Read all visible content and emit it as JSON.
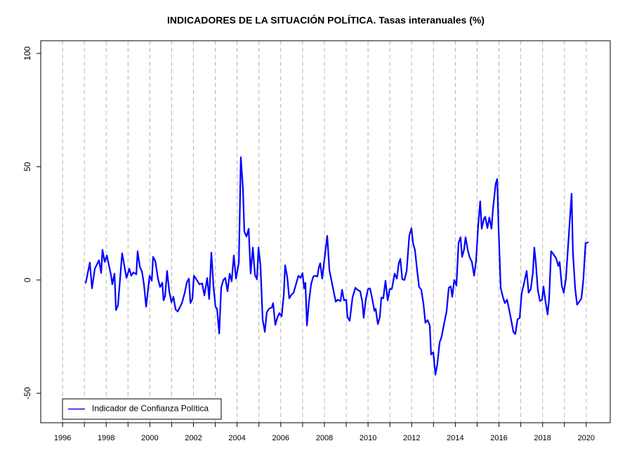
{
  "chart_data": {
    "type": "line",
    "title": "INDICADORES DE LA SITUACIÓN POLÍTICA. Tasas interanuales (%)",
    "x": [
      1997.06,
      1997.25,
      1997.35,
      1997.48,
      1997.67,
      1997.77,
      1997.83,
      1997.93,
      1998.03,
      1998.22,
      1998.28,
      1998.38,
      1998.45,
      1998.54,
      1998.73,
      1998.93,
      1999.06,
      1999.15,
      1999.25,
      1999.38,
      1999.44,
      1999.54,
      1999.64,
      1999.73,
      1999.83,
      1999.99,
      2000.09,
      2000.15,
      2000.25,
      2000.38,
      2000.47,
      2000.57,
      2000.63,
      2000.7,
      2000.79,
      2000.89,
      2000.99,
      2001.08,
      2001.18,
      2001.28,
      2001.47,
      2001.6,
      2001.7,
      2001.79,
      2001.86,
      2001.95,
      2002.02,
      2002.15,
      2002.27,
      2002.4,
      2002.5,
      2002.63,
      2002.72,
      2002.82,
      2002.92,
      2003.01,
      2003.08,
      2003.18,
      2003.27,
      2003.37,
      2003.46,
      2003.56,
      2003.66,
      2003.75,
      2003.85,
      2003.95,
      2004.08,
      2004.17,
      2004.27,
      2004.33,
      2004.43,
      2004.53,
      2004.62,
      2004.72,
      2004.82,
      2004.91,
      2004.98,
      2005.07,
      2005.17,
      2005.27,
      2005.36,
      2005.46,
      2005.59,
      2005.65,
      2005.75,
      2005.85,
      2005.94,
      2006.04,
      2006.14,
      2006.2,
      2006.3,
      2006.39,
      2006.49,
      2006.59,
      2006.68,
      2006.81,
      2006.91,
      2007.0,
      2007.07,
      2007.13,
      2007.2,
      2007.29,
      2007.39,
      2007.49,
      2007.58,
      2007.68,
      2007.74,
      2007.81,
      2007.9,
      2008.0,
      2008.13,
      2008.23,
      2008.36,
      2008.52,
      2008.61,
      2008.74,
      2008.81,
      2008.9,
      2009.0,
      2009.06,
      2009.16,
      2009.29,
      2009.42,
      2009.51,
      2009.64,
      2009.74,
      2009.8,
      2009.9,
      2010.0,
      2010.09,
      2010.19,
      2010.29,
      2010.35,
      2010.45,
      2010.54,
      2010.61,
      2010.7,
      2010.8,
      2010.9,
      2010.99,
      2011.09,
      2011.22,
      2011.32,
      2011.41,
      2011.48,
      2011.57,
      2011.67,
      2011.77,
      2011.89,
      2011.99,
      2012.06,
      2012.15,
      2012.25,
      2012.34,
      2012.44,
      2012.54,
      2012.63,
      2012.73,
      2012.83,
      2012.89,
      2012.99,
      2013.09,
      2013.18,
      2013.28,
      2013.37,
      2013.5,
      2013.6,
      2013.7,
      2013.79,
      2013.86,
      2013.95,
      2014.05,
      2014.15,
      2014.24,
      2014.31,
      2014.4,
      2014.47,
      2014.57,
      2014.66,
      2014.76,
      2014.86,
      2014.95,
      2015.05,
      2015.14,
      2015.21,
      2015.31,
      2015.37,
      2015.47,
      2015.56,
      2015.66,
      2015.72,
      2015.85,
      2015.92,
      2015.98,
      2016.08,
      2016.17,
      2016.27,
      2016.37,
      2016.46,
      2016.56,
      2016.66,
      2016.75,
      2016.85,
      2016.95,
      2017.04,
      2017.14,
      2017.27,
      2017.36,
      2017.46,
      2017.56,
      2017.62,
      2017.69,
      2017.78,
      2017.88,
      2017.98,
      2018.04,
      2018.14,
      2018.23,
      2018.3,
      2018.39,
      2018.49,
      2018.62,
      2018.72,
      2018.78,
      2018.88,
      2018.97,
      2019.07,
      2019.2,
      2019.33,
      2019.39,
      2019.49,
      2019.58,
      2019.68,
      2019.78,
      2019.87,
      2019.97,
      2020.04,
      2020.1
    ],
    "series": [
      {
        "name": "Indicador de Confianza Política",
        "color": "#0000ff",
        "values": [
          -1.5,
          7.7,
          -3.7,
          5,
          8.7,
          3.1,
          13.3,
          8,
          10.8,
          2.2,
          -1.9,
          2.8,
          -13.3,
          -11.2,
          11.8,
          0.9,
          5,
          1.9,
          3.4,
          2.5,
          12.7,
          5.9,
          3.7,
          -1.9,
          -11.8,
          1.9,
          -0.3,
          10.2,
          8.4,
          0.3,
          -3.1,
          -1.2,
          -9,
          -7.1,
          4,
          -5,
          -9.9,
          -7.4,
          -13,
          -13.9,
          -10.2,
          -5.6,
          -0.9,
          0.6,
          -10.2,
          -8.4,
          1.9,
          0,
          -1.9,
          -1.5,
          -6.8,
          0.9,
          -8.4,
          12.1,
          -3.1,
          -11.8,
          -12.7,
          -23.6,
          -3.4,
          0,
          0.9,
          -5,
          2.8,
          -0.6,
          10.8,
          0.6,
          7.7,
          54.2,
          40,
          21.4,
          19.2,
          22.6,
          2.8,
          14.3,
          2.2,
          0.3,
          14.3,
          6.5,
          -17.4,
          -22.9,
          -14.3,
          -12.7,
          -12.1,
          -10.2,
          -19.8,
          -16.4,
          -14.6,
          -16.1,
          -6.5,
          6.5,
          1.2,
          -8.1,
          -6.5,
          -5.6,
          -2.5,
          1.9,
          0.9,
          3.1,
          -3.7,
          -1.2,
          -20.1,
          -9.9,
          -1.9,
          1.5,
          1.9,
          1.5,
          5.3,
          7.4,
          0.6,
          9,
          19.5,
          4.3,
          -1.9,
          -9.6,
          -8.7,
          -9.3,
          -4.3,
          -9,
          -8.7,
          -16.4,
          -18,
          -7.7,
          -3.4,
          -4.3,
          -5,
          -9.6,
          -16.7,
          -8.4,
          -4,
          -3.7,
          -8.1,
          -13.6,
          -12.7,
          -19.5,
          -16.4,
          -7.7,
          -8.1,
          -0.3,
          -9,
          -4,
          -4,
          2.8,
          0.6,
          7.4,
          9.3,
          0.3,
          0,
          4,
          19.5,
          22.9,
          16.4,
          13.3,
          4.3,
          -3.1,
          -4.3,
          -10.5,
          -18.9,
          -17.7,
          -20.1,
          -32.9,
          -31.9,
          -41.8,
          -36.9,
          -27.6,
          -25.1,
          -18.6,
          -13.9,
          -3.4,
          -2.8,
          -7.4,
          0,
          -2.5,
          16.4,
          18.9,
          10.2,
          13.3,
          18.9,
          13.3,
          9.9,
          8,
          1.9,
          8.4,
          24.2,
          34.7,
          22.6,
          27,
          27.9,
          22.9,
          27.6,
          22.6,
          30.7,
          42.5,
          44.6,
          23.6,
          -3.4,
          -7.1,
          -10.2,
          -8.7,
          -12.7,
          -17.7,
          -22.9,
          -23.9,
          -17.4,
          -16.7,
          -5.9,
          -1.9,
          4,
          -5.6,
          -4,
          3.7,
          14.3,
          7.7,
          -4.3,
          -9.3,
          -8.7,
          -2.8,
          -9.9,
          -15.2,
          -8.1,
          12.7,
          11.5,
          9.6,
          6.2,
          8,
          -2.5,
          -5.6,
          0.6,
          19.5,
          38.1,
          12.1,
          -3.4,
          -10.9,
          -9.6,
          -8.1,
          0.3,
          16.4,
          16.4,
          16.7
        ]
      }
    ],
    "xlim": [
      1995,
      2021.1
    ],
    "xticks": [
      1996,
      1998,
      2000,
      2002,
      2004,
      2006,
      2008,
      2010,
      2012,
      2014,
      2016,
      2018,
      2020
    ],
    "x_minor_ticks": [
      1997,
      1999,
      2001,
      2003,
      2005,
      2007,
      2009,
      2011,
      2013,
      2015,
      2017,
      2019
    ],
    "ylim": [
      -63,
      105.6
    ],
    "yticks": [
      -50,
      0,
      50,
      100
    ],
    "grid": true,
    "legend": "bottom-left"
  }
}
